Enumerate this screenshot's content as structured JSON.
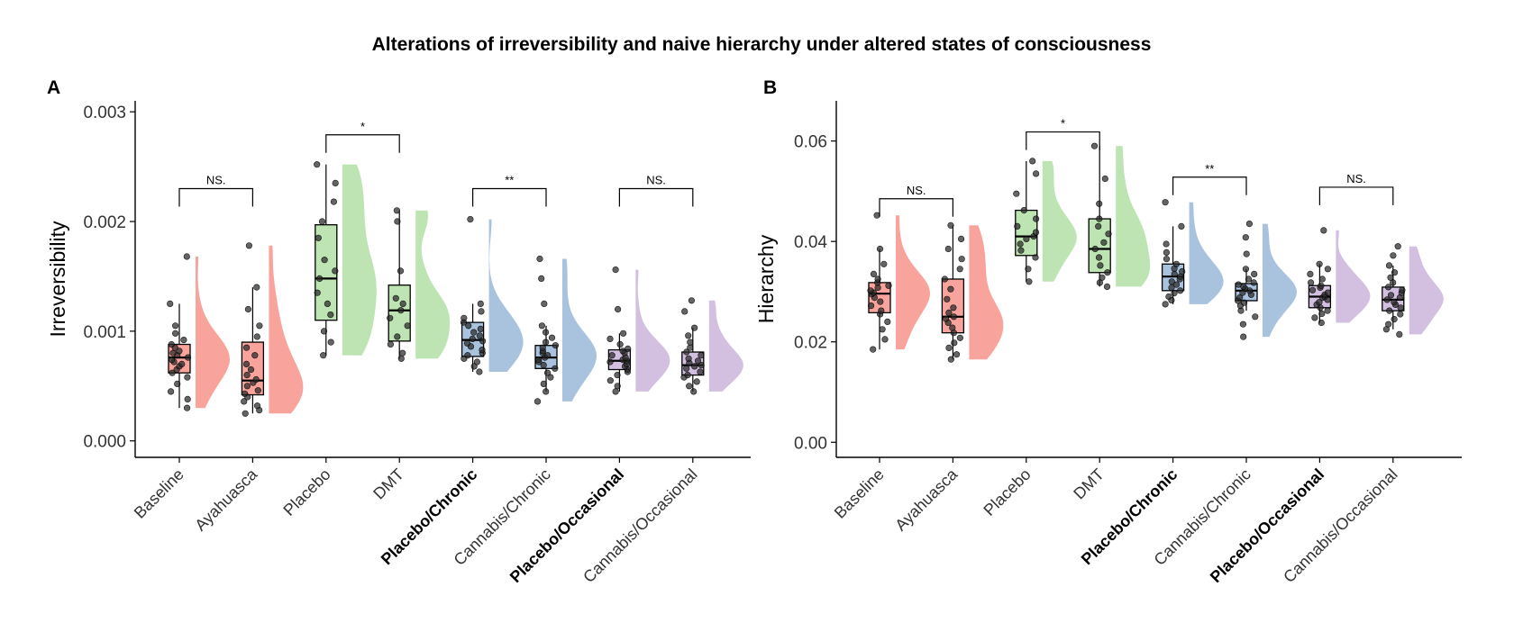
{
  "title": "Alterations of irreversibility and naive  hierarchy under altered states of consciousness",
  "colors": {
    "Baseline": "#F8A39C",
    "Ayahuasca": "#F8A39C",
    "Placebo": "#BDE4B2",
    "DMT": "#BDE4B2",
    "Placebo/Chronic": "#A9C3DF",
    "Cannabis/Chronic": "#A9C3DF",
    "Placebo/Occasional": "#D3BFE0",
    "Cannabis/Occasional": "#D3BFE0"
  },
  "chart_data": [
    {
      "panel": "A",
      "type": "box",
      "ylabel": "Irreversibility",
      "ylim": [
        -0.00015,
        0.0031
      ],
      "yticks": [
        "0.000",
        "0.001",
        "0.002",
        "0.003"
      ],
      "ytick_values": [
        0,
        0.001,
        0.002,
        0.003
      ],
      "categories": [
        "Baseline",
        "Ayahuasca",
        "Placebo",
        "DMT",
        "Placebo/Chronic",
        "Cannabis/Chronic",
        "Placebo/Occasional",
        "Cannabis/Occasional"
      ],
      "bold_categories": [
        "Placebo/Chronic",
        "Placebo/Occasional"
      ],
      "boxes": [
        {
          "min": 0.0003,
          "q1": 0.00062,
          "median": 0.00076,
          "q3": 0.00088,
          "max": 0.00125,
          "points": [
            0.0003,
            0.00038,
            0.00045,
            0.00052,
            0.00058,
            0.00062,
            0.00065,
            0.00068,
            0.0007,
            0.00072,
            0.00074,
            0.00076,
            0.00078,
            0.0008,
            0.00082,
            0.00085,
            0.00088,
            0.00092,
            0.00098,
            0.00105,
            0.00125,
            0.00168
          ]
        },
        {
          "min": 0.00025,
          "q1": 0.00042,
          "median": 0.00055,
          "q3": 0.0009,
          "max": 0.0014,
          "points": [
            0.00025,
            0.00028,
            0.00032,
            0.00036,
            0.0004,
            0.00043,
            0.00046,
            0.0005,
            0.00053,
            0.00056,
            0.0006,
            0.00065,
            0.0007,
            0.00078,
            0.00085,
            0.00095,
            0.00105,
            0.0012,
            0.0014,
            0.00178
          ]
        },
        {
          "min": 0.00078,
          "q1": 0.0011,
          "median": 0.00148,
          "q3": 0.00197,
          "max": 0.00252,
          "points": [
            0.00078,
            0.0009,
            0.001,
            0.00115,
            0.00125,
            0.00135,
            0.00148,
            0.00155,
            0.00165,
            0.00185,
            0.002,
            0.00218,
            0.00235,
            0.00252
          ]
        },
        {
          "min": 0.00075,
          "q1": 0.00091,
          "median": 0.00119,
          "q3": 0.00142,
          "max": 0.0021,
          "points": [
            0.00075,
            0.0008,
            0.00088,
            0.00095,
            0.00105,
            0.00112,
            0.00119,
            0.00125,
            0.0013,
            0.00155,
            0.002,
            0.0021
          ]
        },
        {
          "min": 0.00063,
          "q1": 0.00077,
          "median": 0.00092,
          "q3": 0.00108,
          "max": 0.00125,
          "points": [
            0.00063,
            0.00068,
            0.00072,
            0.00075,
            0.00078,
            0.0008,
            0.00083,
            0.00086,
            0.00089,
            0.00091,
            0.00093,
            0.00096,
            0.00099,
            0.00102,
            0.00105,
            0.00108,
            0.00112,
            0.00118,
            0.00125,
            0.00202
          ]
        },
        {
          "min": 0.00045,
          "q1": 0.00066,
          "median": 0.00076,
          "q3": 0.00087,
          "max": 0.00105,
          "points": [
            0.00036,
            0.00045,
            0.00052,
            0.00058,
            0.00062,
            0.00066,
            0.00069,
            0.00072,
            0.00074,
            0.00076,
            0.00078,
            0.0008,
            0.00082,
            0.00085,
            0.00087,
            0.0009,
            0.00094,
            0.00099,
            0.00105,
            0.00125,
            0.00148,
            0.00166
          ]
        },
        {
          "min": 0.00045,
          "q1": 0.00065,
          "median": 0.00073,
          "q3": 0.00083,
          "max": 0.00098,
          "points": [
            0.00045,
            0.0005,
            0.00055,
            0.0006,
            0.00063,
            0.00065,
            0.00068,
            0.0007,
            0.00072,
            0.00073,
            0.00074,
            0.00076,
            0.00078,
            0.0008,
            0.00082,
            0.00084,
            0.00088,
            0.00093,
            0.00098,
            0.0012,
            0.00156
          ]
        },
        {
          "min": 0.00045,
          "q1": 0.0006,
          "median": 0.00069,
          "q3": 0.00081,
          "max": 0.00103,
          "points": [
            0.00045,
            0.0005,
            0.00054,
            0.00058,
            0.0006,
            0.00063,
            0.00066,
            0.00068,
            0.00069,
            0.00071,
            0.00073,
            0.00075,
            0.00078,
            0.00081,
            0.00085,
            0.0009,
            0.00096,
            0.00103,
            0.00118,
            0.00128
          ]
        }
      ],
      "comparisons": [
        {
          "a": 0,
          "b": 1,
          "y": 0.0023,
          "label": "NS."
        },
        {
          "a": 2,
          "b": 3,
          "y": 0.00279,
          "label": "*"
        },
        {
          "a": 4,
          "b": 5,
          "y": 0.0023,
          "label": "**"
        },
        {
          "a": 6,
          "b": 7,
          "y": 0.0023,
          "label": "NS."
        }
      ]
    },
    {
      "panel": "B",
      "type": "box",
      "ylabel": "Hierarchy",
      "ylim": [
        -0.003,
        0.068
      ],
      "yticks": [
        "0.00",
        "0.02",
        "0.04",
        "0.06"
      ],
      "ytick_values": [
        0,
        0.02,
        0.04,
        0.06
      ],
      "categories": [
        "Baseline",
        "Ayahuasca",
        "Placebo",
        "DMT",
        "Placebo/Chronic",
        "Cannabis/Chronic",
        "Placebo/Occasional",
        "Cannabis/Occasional"
      ],
      "bold_categories": [
        "Placebo/Chronic",
        "Placebo/Occasional"
      ],
      "boxes": [
        {
          "min": 0.0185,
          "q1": 0.0258,
          "median": 0.0296,
          "q3": 0.0318,
          "max": 0.0385,
          "points": [
            0.0185,
            0.0205,
            0.0225,
            0.024,
            0.0255,
            0.0262,
            0.0272,
            0.028,
            0.0288,
            0.0295,
            0.0298,
            0.0302,
            0.0308,
            0.0312,
            0.0318,
            0.0325,
            0.0335,
            0.0355,
            0.0385,
            0.0452
          ]
        },
        {
          "min": 0.0165,
          "q1": 0.0218,
          "median": 0.025,
          "q3": 0.0325,
          "max": 0.0432,
          "points": [
            0.0165,
            0.0175,
            0.0188,
            0.0198,
            0.0208,
            0.0218,
            0.0228,
            0.0238,
            0.0246,
            0.025,
            0.0258,
            0.0268,
            0.0285,
            0.0305,
            0.0325,
            0.0345,
            0.0365,
            0.0385,
            0.0405,
            0.0432
          ]
        },
        {
          "min": 0.032,
          "q1": 0.0372,
          "median": 0.041,
          "q3": 0.0462,
          "max": 0.056,
          "points": [
            0.032,
            0.0345,
            0.0368,
            0.0382,
            0.0395,
            0.0405,
            0.041,
            0.0418,
            0.043,
            0.0445,
            0.0462,
            0.0495,
            0.0535,
            0.056
          ]
        },
        {
          "min": 0.031,
          "q1": 0.0338,
          "median": 0.0385,
          "q3": 0.0445,
          "max": 0.059,
          "points": [
            0.031,
            0.0318,
            0.0328,
            0.0338,
            0.0352,
            0.0368,
            0.0385,
            0.0398,
            0.0415,
            0.043,
            0.0445,
            0.0475,
            0.0525,
            0.059
          ]
        },
        {
          "min": 0.0275,
          "q1": 0.0302,
          "median": 0.033,
          "q3": 0.0355,
          "max": 0.043,
          "points": [
            0.0275,
            0.0283,
            0.029,
            0.0297,
            0.0302,
            0.0308,
            0.0314,
            0.032,
            0.0325,
            0.033,
            0.0335,
            0.034,
            0.0346,
            0.0355,
            0.0365,
            0.0378,
            0.0395,
            0.043,
            0.0478
          ]
        },
        {
          "min": 0.0262,
          "q1": 0.0282,
          "median": 0.0302,
          "q3": 0.0316,
          "max": 0.0345,
          "points": [
            0.021,
            0.0235,
            0.025,
            0.0262,
            0.0272,
            0.0278,
            0.0282,
            0.0288,
            0.0294,
            0.0298,
            0.0302,
            0.0306,
            0.031,
            0.0314,
            0.0318,
            0.0325,
            0.0335,
            0.0345,
            0.0375,
            0.0408,
            0.0435
          ]
        },
        {
          "min": 0.0238,
          "q1": 0.0268,
          "median": 0.029,
          "q3": 0.0312,
          "max": 0.0355,
          "points": [
            0.0238,
            0.0248,
            0.0256,
            0.0262,
            0.0268,
            0.0274,
            0.0279,
            0.0284,
            0.0288,
            0.029,
            0.0294,
            0.0298,
            0.0303,
            0.0308,
            0.0312,
            0.0318,
            0.0325,
            0.0335,
            0.0345,
            0.0355,
            0.0422
          ]
        },
        {
          "min": 0.0225,
          "q1": 0.0262,
          "median": 0.0284,
          "q3": 0.0309,
          "max": 0.0352,
          "points": [
            0.0215,
            0.0225,
            0.0235,
            0.0245,
            0.0255,
            0.0262,
            0.0268,
            0.0274,
            0.0279,
            0.0284,
            0.0288,
            0.0293,
            0.0298,
            0.0303,
            0.0309,
            0.0318,
            0.0328,
            0.0338,
            0.0352,
            0.0372,
            0.039
          ]
        }
      ],
      "comparisons": [
        {
          "a": 0,
          "b": 1,
          "y": 0.0485,
          "label": "NS."
        },
        {
          "a": 2,
          "b": 3,
          "y": 0.0618,
          "label": "*"
        },
        {
          "a": 4,
          "b": 5,
          "y": 0.0528,
          "label": "**"
        },
        {
          "a": 6,
          "b": 7,
          "y": 0.0508,
          "label": "NS."
        }
      ]
    }
  ]
}
